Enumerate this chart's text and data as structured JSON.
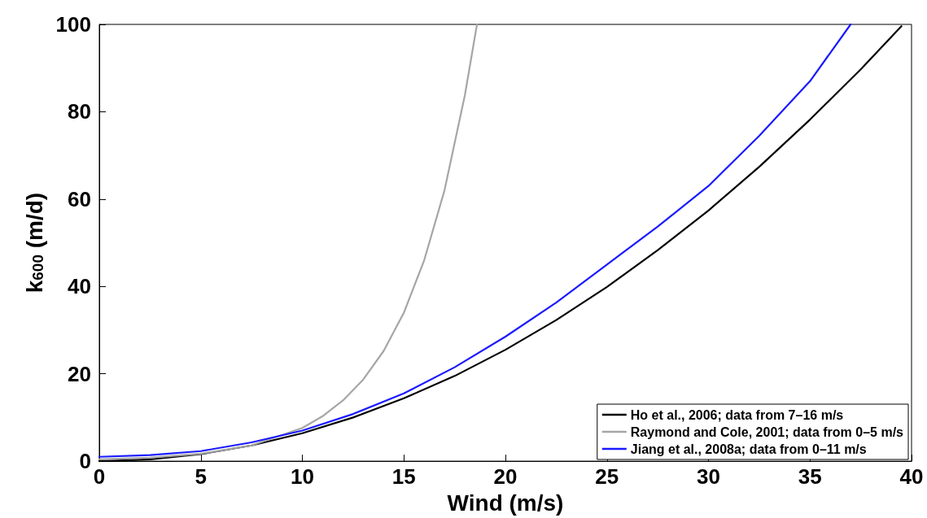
{
  "chart_data": {
    "type": "line",
    "xlabel": "Wind (m/s)",
    "ylabel": "k$_{600}$ (m/d)",
    "xlim": [
      0,
      40
    ],
    "xticks": [
      0,
      5,
      10,
      15,
      20,
      25,
      30,
      35,
      40
    ],
    "ylim": [
      0,
      100
    ],
    "yticks": [
      0,
      20,
      40,
      60,
      80,
      100
    ],
    "grid": false,
    "legend": "bottom right",
    "marker": "none",
    "line_style": "solid",
    "series": [
      {
        "name": "Ho et al., 2006; data from 7–16 m/s",
        "color": "#000000",
        "x": [
          0,
          2.5,
          5,
          7.5,
          10,
          12.5,
          15,
          17.5,
          20,
          22.5,
          25,
          27.5,
          30,
          32.5,
          35,
          37.5,
          39.5
        ],
        "values": [
          0,
          0.4,
          1.6,
          3.6,
          6.4,
          10,
          14.4,
          19.5,
          25.5,
          32.3,
          39.9,
          48.3,
          57.4,
          67.4,
          78.2,
          89.7,
          99.6
        ]
      },
      {
        "name": "Raymond and Cole, 2001; data from 0–5 m/s",
        "color": "#a6a6a6",
        "x": [
          0,
          2.5,
          5,
          7.5,
          10,
          11,
          12,
          13,
          14,
          15,
          16,
          17,
          18,
          18.6
        ],
        "values": [
          0.4,
          0.8,
          1.7,
          3.6,
          7.6,
          10.3,
          13.9,
          18.7,
          25.2,
          34,
          46,
          62,
          83.7,
          100
        ]
      },
      {
        "name": "Jiang et al., 2008a; data from 0–11 m/s",
        "color": "#1a1aff",
        "x": [
          0,
          2.5,
          5,
          7.5,
          10,
          12.5,
          15,
          17.5,
          20,
          22.5,
          25,
          27.5,
          30,
          32.5,
          35,
          37
        ],
        "values": [
          1,
          1.4,
          2.3,
          4.3,
          7,
          10.8,
          15.5,
          21.5,
          28.5,
          36.3,
          45,
          53.7,
          63,
          74.5,
          87,
          100
        ]
      }
    ]
  }
}
